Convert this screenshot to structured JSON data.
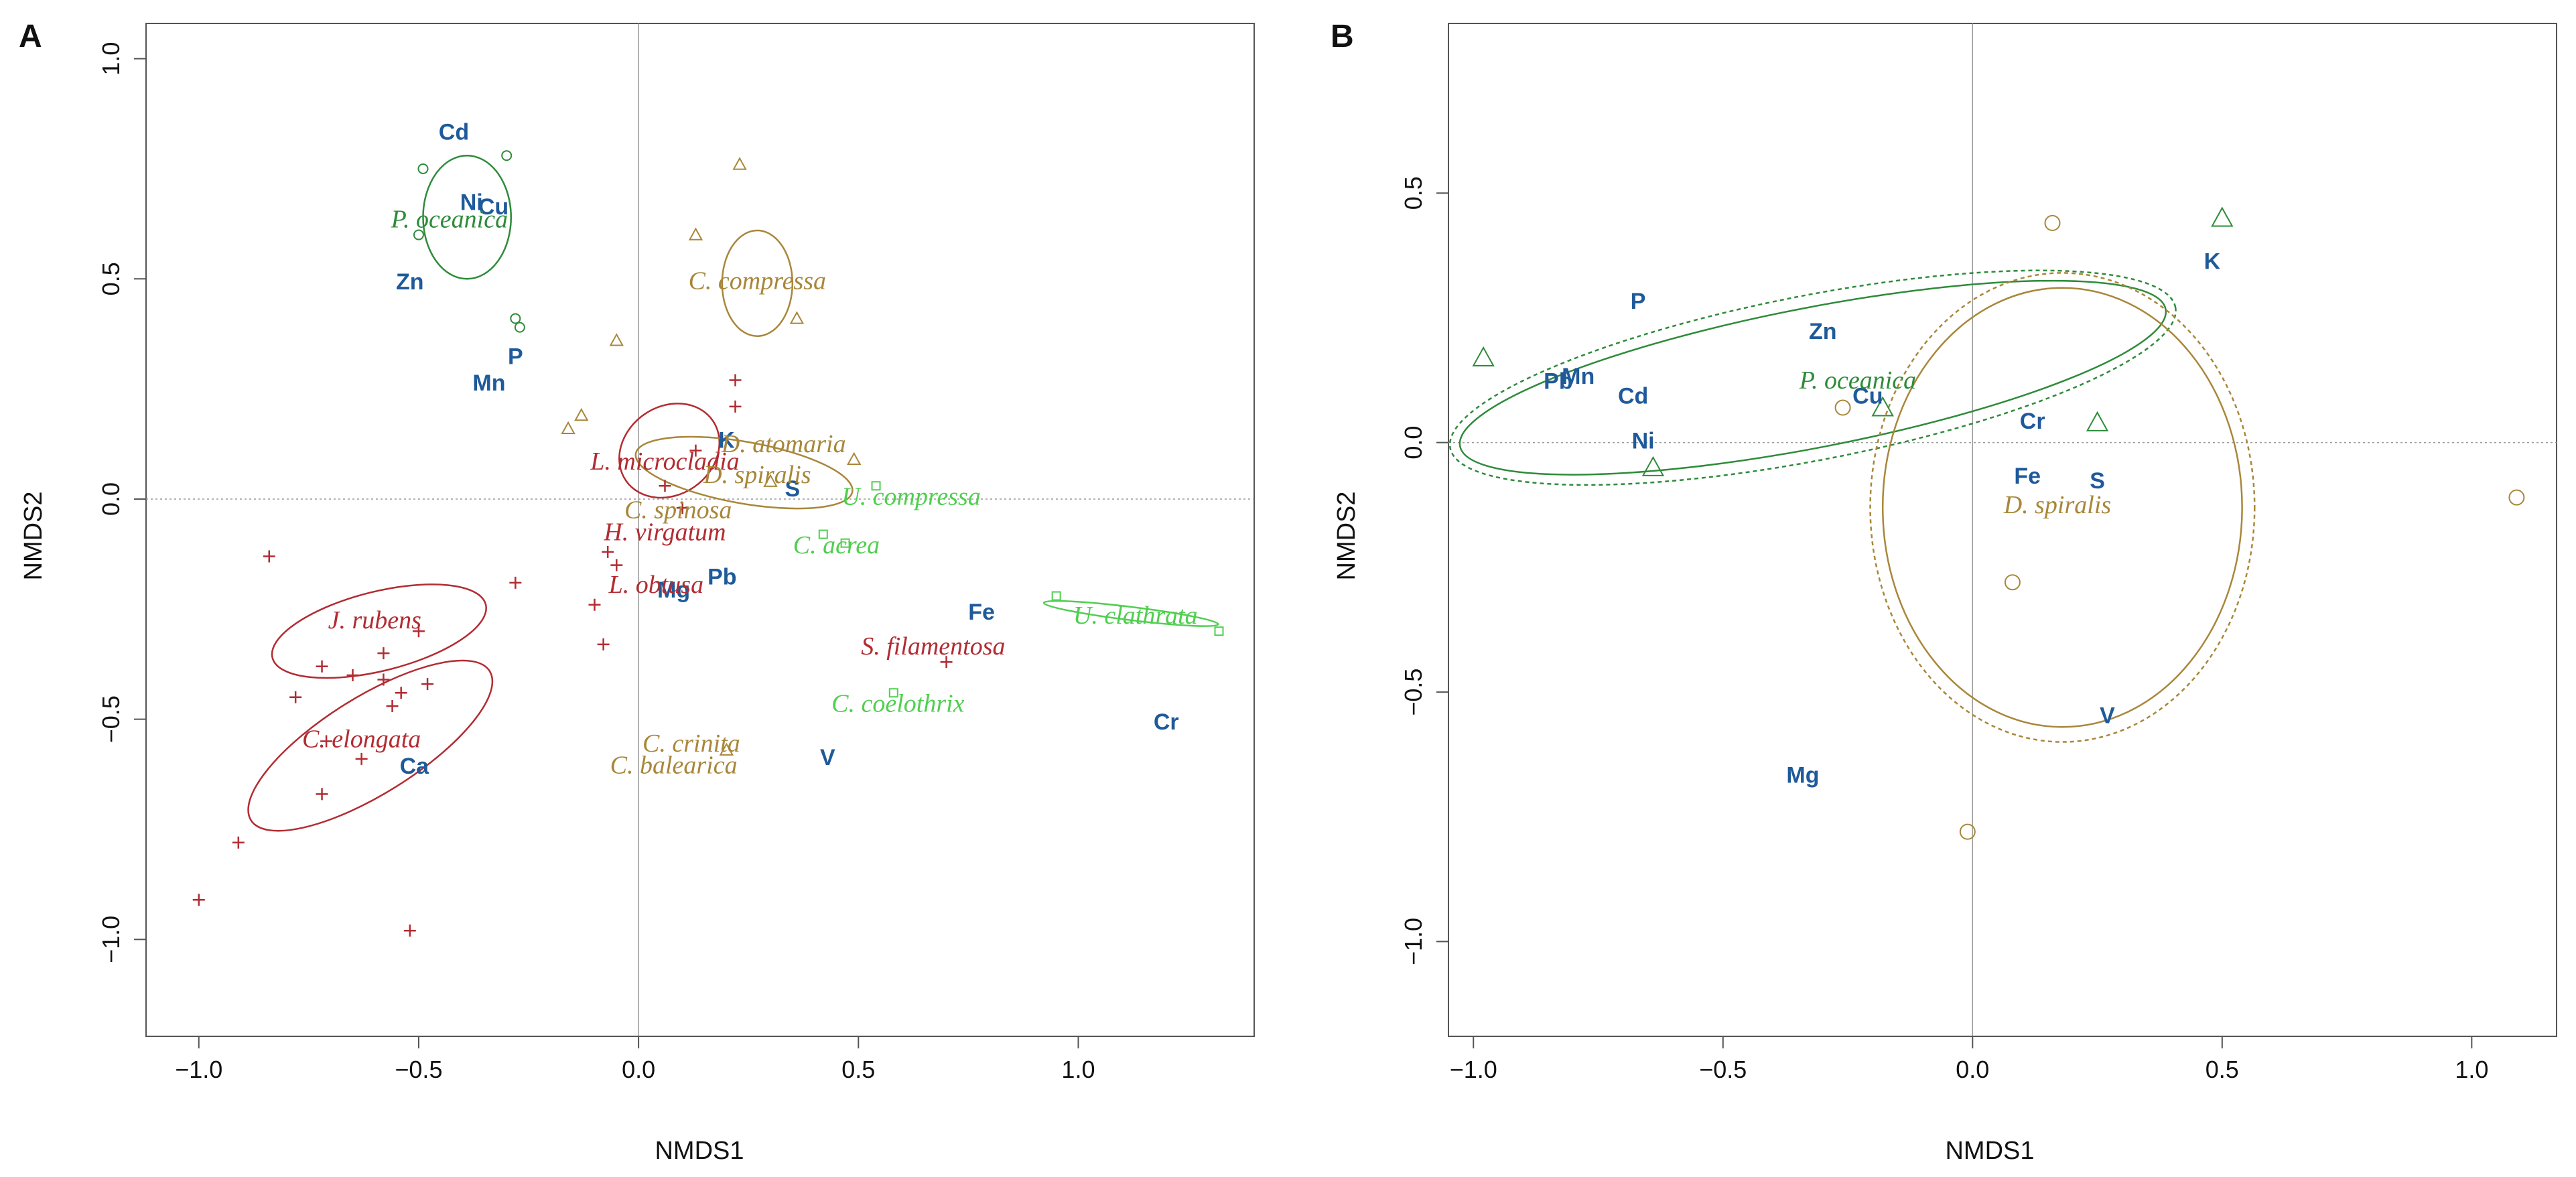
{
  "chart_data": [
    {
      "panel": "A",
      "type": "scatter",
      "xlabel": "NMDS1",
      "ylabel": "NMDS2",
      "xlim": [
        -1.12,
        1.4
      ],
      "ylim": [
        -1.22,
        1.08
      ],
      "xticks": [
        -1.0,
        -0.5,
        0.0,
        0.5,
        1.0
      ],
      "xtick_labels": [
        "−1.0",
        "−0.5",
        "0.0",
        "0.5",
        "1.0"
      ],
      "yticks": [
        -1.0,
        -0.5,
        0.0,
        0.5,
        1.0
      ],
      "ytick_labels": [
        "−1.0",
        "−0.5",
        "0.0",
        "0.5",
        "1.0"
      ],
      "reference_lines": {
        "x": 0,
        "y": 0
      },
      "group_colors": {
        "red": "#b22c32",
        "olive": "#a8873a",
        "green": "#2e8b3a",
        "lime": "#4fcf4f",
        "blue": "#1f5a9a"
      },
      "variables": [
        {
          "label": "Cd",
          "x": -0.42,
          "y": 0.83
        },
        {
          "label": "Ni",
          "x": -0.38,
          "y": 0.67
        },
        {
          "label": "Cu",
          "x": -0.33,
          "y": 0.66
        },
        {
          "label": "Zn",
          "x": -0.52,
          "y": 0.49
        },
        {
          "label": "P",
          "x": -0.28,
          "y": 0.32
        },
        {
          "label": "Mn",
          "x": -0.34,
          "y": 0.26
        },
        {
          "label": "K",
          "x": 0.2,
          "y": 0.13
        },
        {
          "label": "S",
          "x": 0.35,
          "y": 0.02
        },
        {
          "label": "Pb",
          "x": 0.19,
          "y": -0.18
        },
        {
          "label": "Mg",
          "x": 0.08,
          "y": -0.21
        },
        {
          "label": "Fe",
          "x": 0.78,
          "y": -0.26
        },
        {
          "label": "V",
          "x": 0.43,
          "y": -0.59
        },
        {
          "label": "Ca",
          "x": -0.51,
          "y": -0.61
        },
        {
          "label": "Cr",
          "x": 1.2,
          "y": -0.51
        }
      ],
      "species": [
        {
          "label": "P. oceanica",
          "x": -0.43,
          "y": 0.63,
          "group": "green"
        },
        {
          "label": "C. compressa",
          "x": 0.27,
          "y": 0.49,
          "group": "olive"
        },
        {
          "label": "D. atomaria",
          "x": 0.33,
          "y": 0.12,
          "group": "olive"
        },
        {
          "label": "L. microcladia",
          "x": 0.06,
          "y": 0.08,
          "group": "red"
        },
        {
          "label": "D. spiralis",
          "x": 0.27,
          "y": 0.05,
          "group": "olive"
        },
        {
          "label": "C. spinosa",
          "x": 0.09,
          "y": -0.03,
          "group": "olive"
        },
        {
          "label": "U. compressa",
          "x": 0.62,
          "y": 0.0,
          "group": "lime"
        },
        {
          "label": "H. virgatum",
          "x": 0.06,
          "y": -0.08,
          "group": "red"
        },
        {
          "label": "C. acrea",
          "x": 0.45,
          "y": -0.11,
          "group": "lime"
        },
        {
          "label": "L. obtusa",
          "x": 0.04,
          "y": -0.2,
          "group": "red"
        },
        {
          "label": "J. rubens",
          "x": -0.6,
          "y": -0.28,
          "group": "red"
        },
        {
          "label": "U. clathrata",
          "x": 1.13,
          "y": -0.27,
          "group": "lime"
        },
        {
          "label": "S. filamentosa",
          "x": 0.67,
          "y": -0.34,
          "group": "red"
        },
        {
          "label": "C. coelothrix",
          "x": 0.59,
          "y": -0.47,
          "group": "lime"
        },
        {
          "label": "C. elongata",
          "x": -0.63,
          "y": -0.55,
          "group": "red"
        },
        {
          "label": "C. crinita",
          "x": 0.12,
          "y": -0.56,
          "group": "olive"
        },
        {
          "label": "C. balearica",
          "x": 0.08,
          "y": -0.61,
          "group": "olive"
        }
      ],
      "ellipses": [
        {
          "group": "green",
          "cx": -0.39,
          "cy": 0.64,
          "rx": 0.1,
          "ry": 0.14,
          "angle": 0
        },
        {
          "group": "olive",
          "cx": 0.27,
          "cy": 0.49,
          "rx": 0.08,
          "ry": 0.12,
          "angle": 0
        },
        {
          "group": "red",
          "cx": 0.07,
          "cy": 0.11,
          "rx": 0.12,
          "ry": 0.1,
          "angle": 35
        },
        {
          "group": "olive",
          "cx": 0.24,
          "cy": 0.06,
          "rx": 0.25,
          "ry": 0.07,
          "angle": -10
        },
        {
          "group": "lime",
          "cx": 1.12,
          "cy": -0.26,
          "rx": 0.2,
          "ry": 0.015,
          "angle": -7
        },
        {
          "group": "red",
          "cx": -0.59,
          "cy": -0.3,
          "rx": 0.25,
          "ry": 0.09,
          "angle": 14
        },
        {
          "group": "red",
          "cx": -0.61,
          "cy": -0.56,
          "rx": 0.32,
          "ry": 0.11,
          "angle": 32
        }
      ],
      "points": [
        {
          "shape": "plus",
          "group": "red",
          "x": -1.0,
          "y": -0.91
        },
        {
          "shape": "plus",
          "group": "red",
          "x": -0.91,
          "y": -0.78
        },
        {
          "shape": "plus",
          "group": "red",
          "x": -0.84,
          "y": -0.13
        },
        {
          "shape": "plus",
          "group": "red",
          "x": -0.78,
          "y": -0.45
        },
        {
          "shape": "plus",
          "group": "red",
          "x": -0.72,
          "y": -0.38
        },
        {
          "shape": "plus",
          "group": "red",
          "x": -0.71,
          "y": -0.55
        },
        {
          "shape": "plus",
          "group": "red",
          "x": -0.72,
          "y": -0.67
        },
        {
          "shape": "plus",
          "group": "red",
          "x": -0.65,
          "y": -0.4
        },
        {
          "shape": "plus",
          "group": "red",
          "x": -0.63,
          "y": -0.59
        },
        {
          "shape": "plus",
          "group": "red",
          "x": -0.58,
          "y": -0.35
        },
        {
          "shape": "plus",
          "group": "red",
          "x": -0.58,
          "y": -0.41
        },
        {
          "shape": "plus",
          "group": "red",
          "x": -0.56,
          "y": -0.47
        },
        {
          "shape": "plus",
          "group": "red",
          "x": -0.54,
          "y": -0.44
        },
        {
          "shape": "plus",
          "group": "red",
          "x": -0.5,
          "y": -0.3
        },
        {
          "shape": "plus",
          "group": "red",
          "x": -0.48,
          "y": -0.42
        },
        {
          "shape": "plus",
          "group": "red",
          "x": -0.52,
          "y": -0.98
        },
        {
          "shape": "plus",
          "group": "red",
          "x": -0.28,
          "y": -0.19
        },
        {
          "shape": "plus",
          "group": "red",
          "x": -0.1,
          "y": -0.24
        },
        {
          "shape": "plus",
          "group": "red",
          "x": -0.08,
          "y": -0.33
        },
        {
          "shape": "plus",
          "group": "red",
          "x": -0.07,
          "y": -0.12
        },
        {
          "shape": "plus",
          "group": "red",
          "x": -0.05,
          "y": -0.15
        },
        {
          "shape": "plus",
          "group": "red",
          "x": 0.06,
          "y": 0.03
        },
        {
          "shape": "plus",
          "group": "red",
          "x": 0.1,
          "y": -0.02
        },
        {
          "shape": "plus",
          "group": "red",
          "x": 0.13,
          "y": 0.11
        },
        {
          "shape": "plus",
          "group": "red",
          "x": 0.22,
          "y": 0.27
        },
        {
          "shape": "plus",
          "group": "red",
          "x": 0.22,
          "y": 0.21
        },
        {
          "shape": "plus",
          "group": "red",
          "x": 0.7,
          "y": -0.37
        },
        {
          "shape": "triangle",
          "group": "olive",
          "x": -0.16,
          "y": 0.16
        },
        {
          "shape": "triangle",
          "group": "olive",
          "x": -0.13,
          "y": 0.19
        },
        {
          "shape": "triangle",
          "group": "olive",
          "x": -0.05,
          "y": 0.36
        },
        {
          "shape": "triangle",
          "group": "olive",
          "x": 0.13,
          "y": 0.6
        },
        {
          "shape": "triangle",
          "group": "olive",
          "x": 0.23,
          "y": 0.76
        },
        {
          "shape": "triangle",
          "group": "olive",
          "x": 0.36,
          "y": 0.41
        },
        {
          "shape": "triangle",
          "group": "olive",
          "x": 0.49,
          "y": 0.09
        },
        {
          "shape": "triangle",
          "group": "olive",
          "x": 0.3,
          "y": 0.04
        },
        {
          "shape": "triangle",
          "group": "olive",
          "x": 0.2,
          "y": -0.57
        },
        {
          "shape": "circle",
          "group": "green",
          "x": -0.49,
          "y": 0.75
        },
        {
          "shape": "circle",
          "group": "green",
          "x": -0.3,
          "y": 0.78
        },
        {
          "shape": "circle",
          "group": "green",
          "x": -0.5,
          "y": 0.6
        },
        {
          "shape": "circle",
          "group": "green",
          "x": -0.28,
          "y": 0.41
        },
        {
          "shape": "circle",
          "group": "green",
          "x": -0.27,
          "y": 0.39
        },
        {
          "shape": "square",
          "group": "lime",
          "x": 0.54,
          "y": 0.03
        },
        {
          "shape": "square",
          "group": "lime",
          "x": 0.47,
          "y": -0.1
        },
        {
          "shape": "square",
          "group": "lime",
          "x": 0.42,
          "y": -0.08
        },
        {
          "shape": "square",
          "group": "lime",
          "x": 0.58,
          "y": -0.44
        },
        {
          "shape": "square",
          "group": "lime",
          "x": 0.95,
          "y": -0.22
        },
        {
          "shape": "square",
          "group": "lime",
          "x": 1.32,
          "y": -0.3
        }
      ]
    },
    {
      "panel": "B",
      "type": "scatter",
      "xlabel": "NMDS1",
      "ylabel": "NMDS2",
      "xlim": [
        -1.05,
        1.17
      ],
      "ylim": [
        -1.19,
        0.84
      ],
      "xticks": [
        -1.0,
        -0.5,
        0.0,
        0.5,
        1.0
      ],
      "xtick_labels": [
        "−1.0",
        "−0.5",
        "0.0",
        "0.5",
        "1.0"
      ],
      "yticks": [
        -1.0,
        -0.5,
        0.0,
        0.5
      ],
      "ytick_labels": [
        "−1.0",
        "−0.5",
        "0.0",
        "0.5"
      ],
      "reference_lines": {
        "x": 0,
        "y": 0
      },
      "group_colors": {
        "olive": "#a8873a",
        "green": "#2e8b3a",
        "blue": "#1f5a9a"
      },
      "variables": [
        {
          "label": "P",
          "x": -0.67,
          "y": 0.28
        },
        {
          "label": "Zn",
          "x": -0.3,
          "y": 0.22
        },
        {
          "label": "Pb",
          "x": -0.83,
          "y": 0.12
        },
        {
          "label": "Mn",
          "x": -0.79,
          "y": 0.13
        },
        {
          "label": "Cd",
          "x": -0.68,
          "y": 0.09
        },
        {
          "label": "Cu",
          "x": -0.21,
          "y": 0.09
        },
        {
          "label": "Ni",
          "x": -0.66,
          "y": 0.0
        },
        {
          "label": "K",
          "x": 0.48,
          "y": 0.36
        },
        {
          "label": "Cr",
          "x": 0.12,
          "y": 0.04
        },
        {
          "label": "Fe",
          "x": 0.11,
          "y": -0.07
        },
        {
          "label": "S",
          "x": 0.25,
          "y": -0.08
        },
        {
          "label": "V",
          "x": 0.27,
          "y": -0.55
        },
        {
          "label": "Mg",
          "x": -0.34,
          "y": -0.67
        }
      ],
      "species": [
        {
          "label": "P. oceanica",
          "x": -0.23,
          "y": 0.12,
          "group": "green"
        },
        {
          "label": "D. spiralis",
          "x": 0.17,
          "y": -0.13,
          "group": "olive"
        }
      ],
      "ellipses": [
        {
          "group": "green",
          "cx": -0.32,
          "cy": 0.13,
          "rx": 0.72,
          "ry": 0.14,
          "angle": 11,
          "dash": false
        },
        {
          "group": "green",
          "cx": -0.32,
          "cy": 0.13,
          "rx": 0.74,
          "ry": 0.165,
          "angle": 11,
          "dash": true
        },
        {
          "group": "olive",
          "cx": 0.18,
          "cy": -0.13,
          "rx": 0.36,
          "ry": 0.44,
          "angle": 0,
          "dash": false
        },
        {
          "group": "olive",
          "cx": 0.18,
          "cy": -0.13,
          "rx": 0.385,
          "ry": 0.47,
          "angle": 0,
          "dash": true
        }
      ],
      "points": [
        {
          "shape": "triangle",
          "group": "green",
          "x": -0.98,
          "y": 0.17
        },
        {
          "shape": "triangle",
          "group": "green",
          "x": -0.64,
          "y": -0.05
        },
        {
          "shape": "triangle",
          "group": "green",
          "x": -0.18,
          "y": 0.07
        },
        {
          "shape": "triangle",
          "group": "green",
          "x": 0.25,
          "y": 0.04
        },
        {
          "shape": "triangle",
          "group": "green",
          "x": 0.5,
          "y": 0.45
        },
        {
          "shape": "circle",
          "group": "olive",
          "x": 0.16,
          "y": 0.44
        },
        {
          "shape": "circle",
          "group": "olive",
          "x": -0.26,
          "y": 0.07
        },
        {
          "shape": "circle",
          "group": "olive",
          "x": 0.08,
          "y": -0.28
        },
        {
          "shape": "circle",
          "group": "olive",
          "x": -0.01,
          "y": -0.78
        },
        {
          "shape": "circle",
          "group": "olive",
          "x": 1.09,
          "y": -0.11
        }
      ]
    }
  ],
  "panel_letters": [
    "A",
    "B"
  ]
}
